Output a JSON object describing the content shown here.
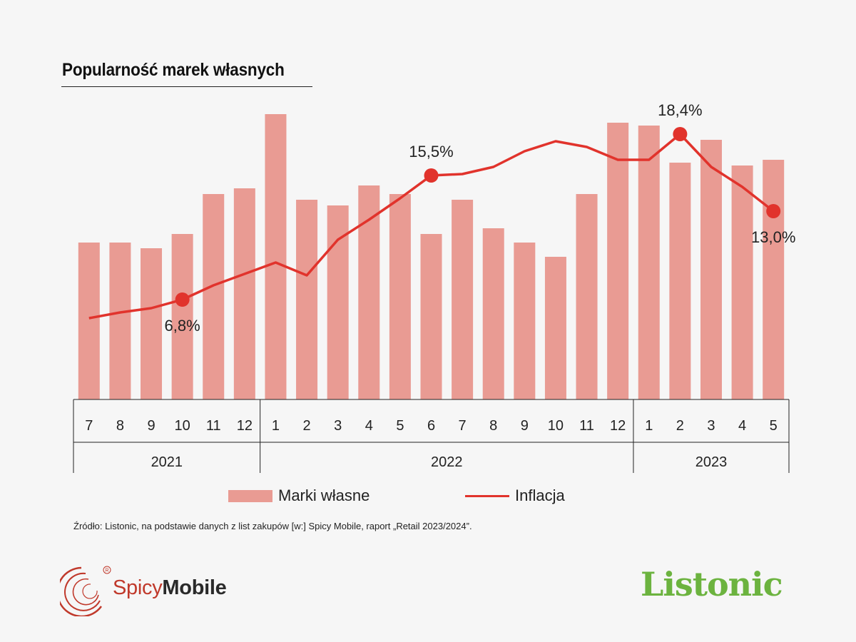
{
  "title": "Popularność marek własnych",
  "colors": {
    "bar": "#e99b93",
    "line": "#e1332c",
    "axis": "#222222",
    "brand_green": "#6cb33f"
  },
  "chart_data": {
    "type": "bar+line",
    "categories": [
      "7",
      "8",
      "9",
      "10",
      "11",
      "12",
      "1",
      "2",
      "3",
      "4",
      "5",
      "6",
      "7",
      "8",
      "9",
      "10",
      "11",
      "12",
      "1",
      "2",
      "3",
      "4",
      "5"
    ],
    "year_groups": [
      {
        "label": "2021",
        "span": 6
      },
      {
        "label": "2022",
        "span": 12
      },
      {
        "label": "2023",
        "span": 5
      }
    ],
    "series": [
      {
        "name": "Marki własne",
        "type": "bar",
        "values": [
          55,
          55,
          53,
          58,
          72,
          74,
          100,
          70,
          68,
          75,
          72,
          58,
          70,
          60,
          55,
          50,
          72,
          97,
          96,
          83,
          91,
          82,
          84
        ]
      },
      {
        "name": "Inflacja",
        "type": "line",
        "values": [
          5.5,
          5.9,
          6.2,
          6.8,
          7.8,
          8.6,
          9.4,
          8.5,
          11.0,
          12.4,
          13.9,
          15.5,
          15.6,
          16.1,
          17.2,
          17.9,
          17.5,
          16.6,
          16.6,
          18.4,
          16.1,
          14.7,
          13.0
        ],
        "annotations": [
          {
            "index": 3,
            "label": "6,8%",
            "position": "below"
          },
          {
            "index": 11,
            "label": "15,5%",
            "position": "above"
          },
          {
            "index": 19,
            "label": "18,4%",
            "position": "above"
          },
          {
            "index": 22,
            "label": "13,0%",
            "position": "below"
          }
        ]
      }
    ],
    "bar_ylim": [
      0,
      100
    ],
    "line_ylim": [
      0,
      20
    ]
  },
  "legend": {
    "bar_label": "Marki własne",
    "line_label": "Inflacja"
  },
  "source": "Źródło:  Listonic, na podstawie danych z list zakupów [w:] Spicy Mobile, raport „Retail 2023/2024”.",
  "logos": {
    "spicy_light": "Spicy",
    "spicy_bold": "Mobile",
    "listonic": "Listonic"
  }
}
